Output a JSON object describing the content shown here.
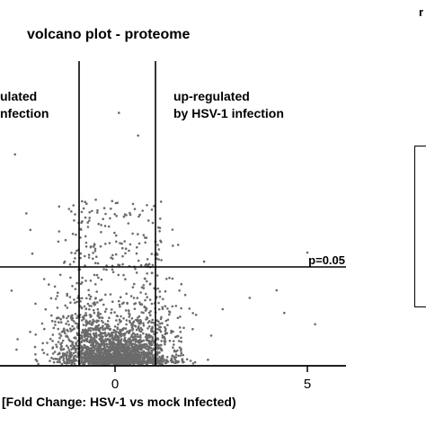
{
  "chart_data": {
    "type": "scatter",
    "title": "volcano plot - proteome",
    "xlabel": "[Fold  Change: HSV-1 vs mock Infected)",
    "xlim": [
      -3,
      6
    ],
    "ylim": [
      0,
      7
    ],
    "x_ticks": [
      "0",
      "5"
    ],
    "x_tick_values": [
      0,
      5
    ],
    "thresholds": {
      "fold_change_lines": [
        -1,
        1
      ],
      "p_value_line_y": 2.5,
      "p_value_label": "p=0.05"
    },
    "annotations": {
      "down_regulated": [
        "ulated",
        "nfection"
      ],
      "up_regulated": [
        "up-regulated",
        "by HSV-1 infection"
      ]
    },
    "point_color": "#6b6b6b",
    "outliers": [
      {
        "x": 0.1,
        "y": 6.7
      },
      {
        "x": 0.6,
        "y": 6.1
      },
      {
        "x": -2.6,
        "y": 5.6
      },
      {
        "x": 5.0,
        "y": 3.0
      },
      {
        "x": 5.2,
        "y": 1.1
      },
      {
        "x": 4.2,
        "y": 2.0
      },
      {
        "x": 4.4,
        "y": 1.4
      },
      {
        "x": 3.5,
        "y": 1.8
      },
      {
        "x": -2.2,
        "y": 3.6
      },
      {
        "x": 2.5,
        "y": 0.8
      },
      {
        "x": 2.8,
        "y": 1.5
      },
      {
        "x": -0.6,
        "y": 4.1
      },
      {
        "x": -0.5,
        "y": 4.4
      },
      {
        "x": 0.4,
        "y": 4.0
      }
    ]
  },
  "right_panel": {
    "top_fragment": "r"
  }
}
